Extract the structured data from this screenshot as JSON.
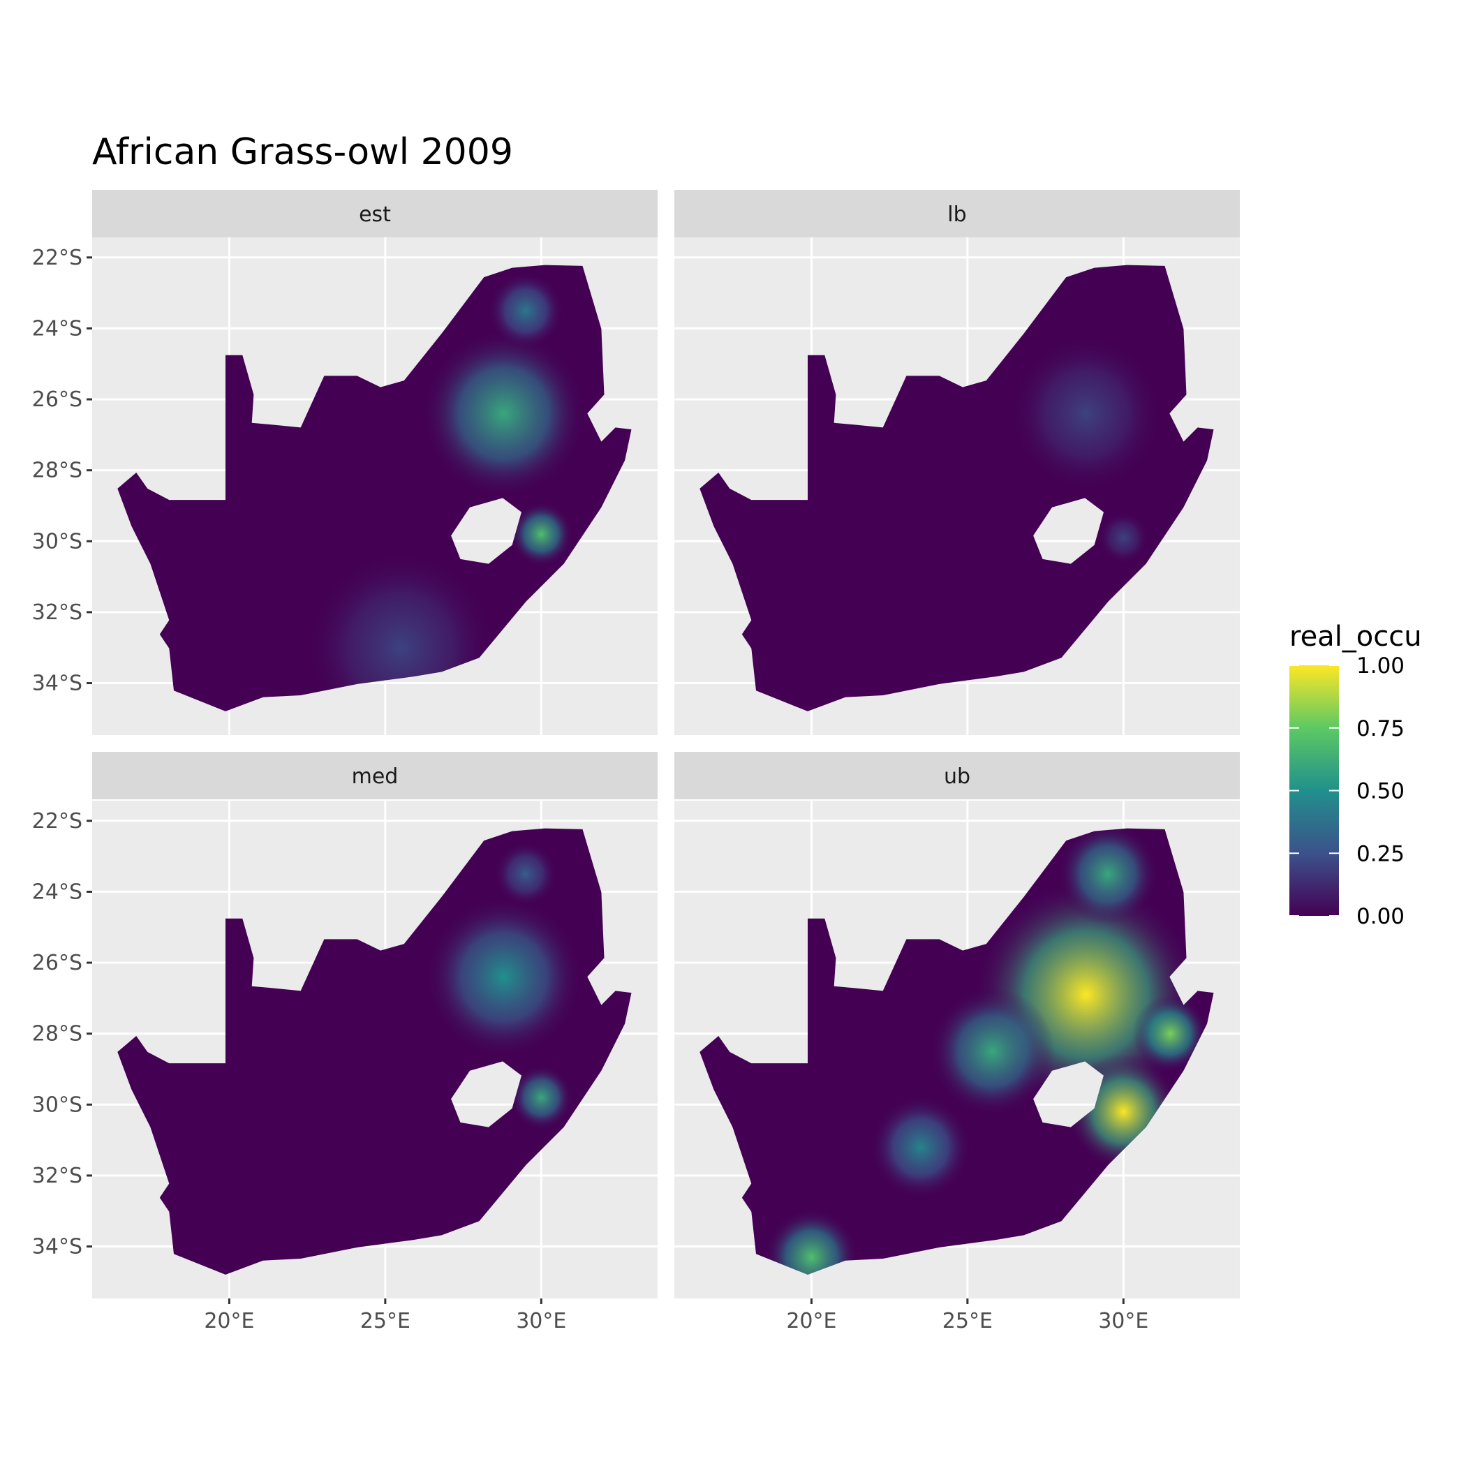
{
  "title": "African Grass-owl 2009",
  "chart_data": {
    "type": "heatmap",
    "title": "African Grass-owl 2009",
    "facets": [
      "est",
      "lb",
      "med",
      "ub"
    ],
    "x_ticks": [
      {
        "value": 20,
        "label": "20°E"
      },
      {
        "value": 25,
        "label": "25°E"
      },
      {
        "value": 30,
        "label": "30°E"
      }
    ],
    "y_ticks": [
      {
        "value": -22,
        "label": "22°S"
      },
      {
        "value": -24,
        "label": "24°S"
      },
      {
        "value": -26,
        "label": "26°S"
      },
      {
        "value": -28,
        "label": "28°S"
      },
      {
        "value": -30,
        "label": "30°S"
      },
      {
        "value": -32,
        "label": "32°S"
      },
      {
        "value": -34,
        "label": "34°S"
      }
    ],
    "xlim": [
      15.6,
      33.7
    ],
    "ylim": [
      -35.7,
      -21.3
    ],
    "grid": true,
    "legend": {
      "title": "real_occu",
      "placement": "right",
      "range": [
        0,
        1
      ],
      "ticks": [
        "0.00",
        "0.25",
        "0.50",
        "0.75",
        "1.00"
      ],
      "palette": [
        "#440154",
        "#3b528b",
        "#21908c",
        "#5dc963",
        "#fde725"
      ]
    },
    "colors": {
      "panel_bg": "#ebebeb",
      "strip_bg": "#d9d9d9",
      "grid": "#ffffff",
      "low": "#440154",
      "high": "#fde725"
    }
  }
}
